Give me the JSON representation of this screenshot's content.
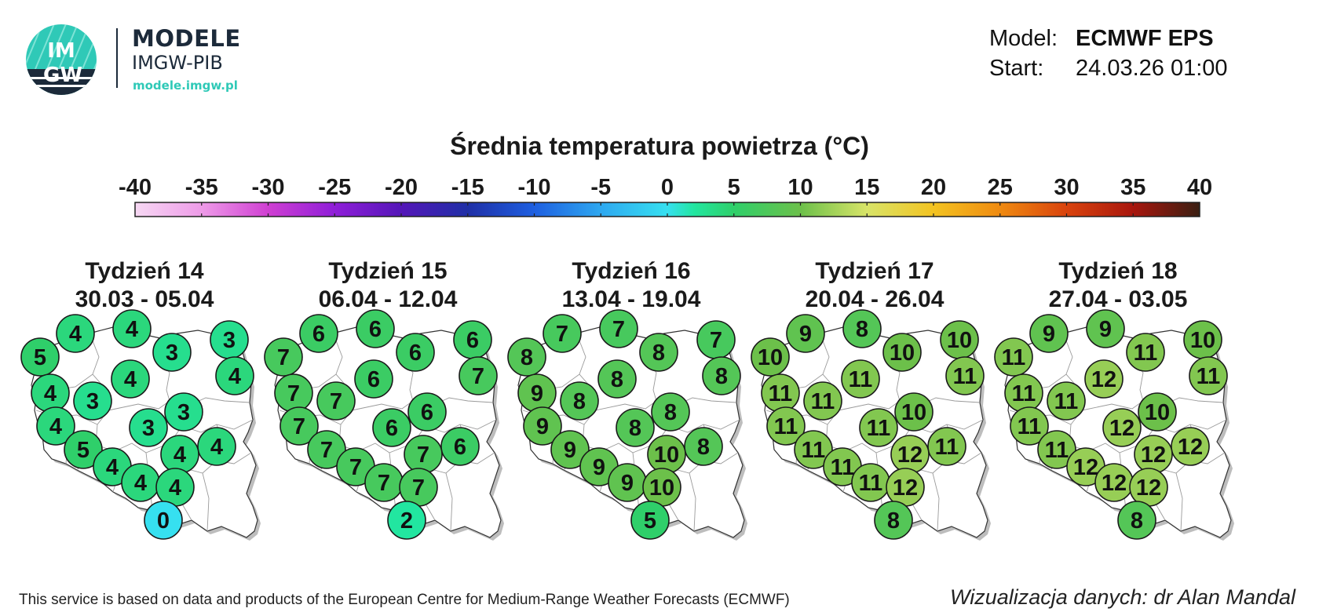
{
  "logo": {
    "mark_top": "IM",
    "mark_bottom": "GW",
    "title": "MODELE",
    "subtitle": "IMGW-PIB",
    "url": "modele.imgw.pl",
    "color_dark": "#1c2a3a",
    "color_accent": "#2fc9b7"
  },
  "info": {
    "model_label": "Model:",
    "model_value": "ECMWF EPS",
    "start_label": "Start:",
    "start_value": "24.03.26 01:00"
  },
  "title": "Średnia temperatura powietrza (°C)",
  "colorbar": {
    "ticks": [
      "-40",
      "-35",
      "-30",
      "-25",
      "-20",
      "-15",
      "-10",
      "-5",
      "0",
      "5",
      "10",
      "15",
      "20",
      "25",
      "30",
      "35",
      "40"
    ],
    "range": [
      -40,
      40
    ],
    "stops": [
      {
        "v": -40,
        "c": "#f6d8f3"
      },
      {
        "v": -35,
        "c": "#ee9be8"
      },
      {
        "v": -30,
        "c": "#cf3fd2"
      },
      {
        "v": -25,
        "c": "#8f1ed8"
      },
      {
        "v": -20,
        "c": "#5416b8"
      },
      {
        "v": -15,
        "c": "#1f2fa6"
      },
      {
        "v": -10,
        "c": "#1e5fe0"
      },
      {
        "v": -5,
        "c": "#2ea8f0"
      },
      {
        "v": 0,
        "c": "#36e0f0"
      },
      {
        "v": 2,
        "c": "#22e6a0"
      },
      {
        "v": 5,
        "c": "#2fcf6a"
      },
      {
        "v": 10,
        "c": "#6cc04a"
      },
      {
        "v": 15,
        "c": "#d8e468"
      },
      {
        "v": 20,
        "c": "#f3c321"
      },
      {
        "v": 25,
        "c": "#ef8a10"
      },
      {
        "v": 30,
        "c": "#d9430d"
      },
      {
        "v": 35,
        "c": "#a8160d"
      },
      {
        "v": 40,
        "c": "#3a1f12"
      }
    ]
  },
  "weeks": [
    {
      "title": "Tydzień 14",
      "dates": "30.03 - 05.04",
      "values": [
        "4",
        "4",
        "3",
        "5",
        "3",
        "4",
        "4",
        "4",
        "3",
        "3",
        "4",
        "3",
        "4",
        "5",
        "4",
        "4",
        "4",
        "4",
        "0"
      ]
    },
    {
      "title": "Tydzień 15",
      "dates": "06.04 - 12.04",
      "values": [
        "6",
        "6",
        "6",
        "7",
        "6",
        "7",
        "6",
        "7",
        "7",
        "6",
        "7",
        "6",
        "6",
        "7",
        "7",
        "7",
        "7",
        "7",
        "2"
      ]
    },
    {
      "title": "Tydzień 16",
      "dates": "13.04 - 19.04",
      "values": [
        "7",
        "7",
        "7",
        "8",
        "8",
        "8",
        "8",
        "9",
        "8",
        "8",
        "9",
        "8",
        "8",
        "9",
        "10",
        "9",
        "9",
        "10",
        "5"
      ]
    },
    {
      "title": "Tydzień 17",
      "dates": "20.04 - 26.04",
      "values": [
        "9",
        "8",
        "10",
        "10",
        "10",
        "11",
        "11",
        "11",
        "11",
        "10",
        "11",
        "11",
        "11",
        "11",
        "12",
        "11",
        "11",
        "12",
        "8"
      ]
    },
    {
      "title": "Tydzień 18",
      "dates": "27.04 - 03.05",
      "values": [
        "9",
        "9",
        "10",
        "11",
        "11",
        "11",
        "12",
        "11",
        "11",
        "10",
        "11",
        "12",
        "12",
        "11",
        "12",
        "12",
        "12",
        "12",
        "8"
      ]
    }
  ],
  "footer_left": "This service is based on data and products of the European Centre for Medium-Range Weather Forecasts (ECMWF)",
  "footer_right": "Wizualizacja danych: dr Alan Mandal"
}
